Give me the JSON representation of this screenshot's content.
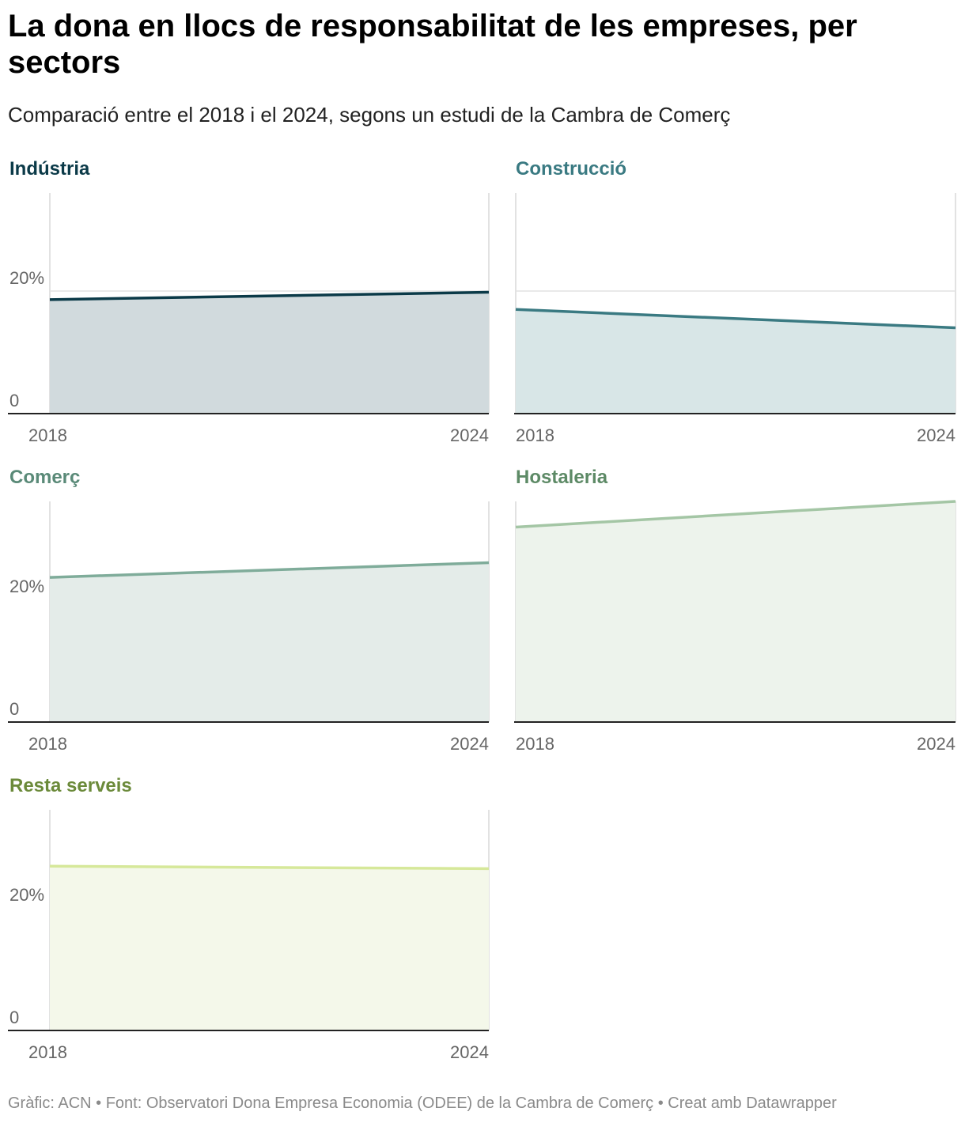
{
  "title": "La dona en llocs de responsabilitat de les empreses, per sectors",
  "subtitle": "Comparació entre el 2018 i el 2024, segons un estudi de la Cambra de Comerç",
  "footer": "Gràfic: ACN • Font: Observatori Dona Empresa Economia (ODEE) de la Cambra de Comerç • Creat amb Datawrapper",
  "chart_data": [
    {
      "type": "area",
      "title": "Indústria",
      "color": "#0b3a48",
      "fill": "#d1dadd",
      "x": [
        "2018",
        "2024"
      ],
      "values": [
        18.6,
        19.8
      ],
      "ylim": [
        0,
        36
      ],
      "yticks": [
        0,
        20
      ],
      "ytick_labels": [
        "0",
        "20%"
      ],
      "xtick_labels": [
        "2018",
        "2024"
      ],
      "grid": true
    },
    {
      "type": "area",
      "title": "Construcció",
      "color": "#3a7a82",
      "fill": "#d8e6e7",
      "x": [
        "2018",
        "2024"
      ],
      "values": [
        17.0,
        14.0
      ],
      "ylim": [
        0,
        36
      ],
      "yticks": [
        0,
        20
      ],
      "ytick_labels": [
        "",
        ""
      ],
      "xtick_labels": [
        "2018",
        "2024"
      ],
      "grid": true
    },
    {
      "type": "area",
      "title": "Comerç",
      "color": "#7fac9a",
      "fill": "#e4ece9",
      "x": [
        "2018",
        "2024"
      ],
      "values": [
        23.6,
        26.0
      ],
      "ylim": [
        0,
        36
      ],
      "yticks": [
        0,
        20
      ],
      "ytick_labels": [
        "0",
        "20%"
      ],
      "xtick_labels": [
        "2018",
        "2024"
      ],
      "grid": true
    },
    {
      "type": "area",
      "title": "Hostaleria",
      "color": "#a4c6a5",
      "fill": "#edf3ec",
      "x": [
        "2018",
        "2024"
      ],
      "values": [
        31.8,
        36.0
      ],
      "ylim": [
        0,
        36
      ],
      "yticks": [
        0,
        20
      ],
      "ytick_labels": [
        "",
        ""
      ],
      "xtick_labels": [
        "2018",
        "2024"
      ],
      "grid": true
    },
    {
      "type": "area",
      "title": "Resta serveis",
      "color": "#d6e89a",
      "fill": "#f4f8ea",
      "x": [
        "2018",
        "2024"
      ],
      "values": [
        26.8,
        26.4
      ],
      "ylim": [
        0,
        36
      ],
      "yticks": [
        0,
        20
      ],
      "ytick_labels": [
        "0",
        "20%"
      ],
      "xtick_labels": [
        "2018",
        "2024"
      ],
      "grid": true
    }
  ],
  "title_colors": [
    "#0b3a48",
    "#3a7a82",
    "#5a8a78",
    "#5d8a66",
    "#6b8a3a"
  ]
}
